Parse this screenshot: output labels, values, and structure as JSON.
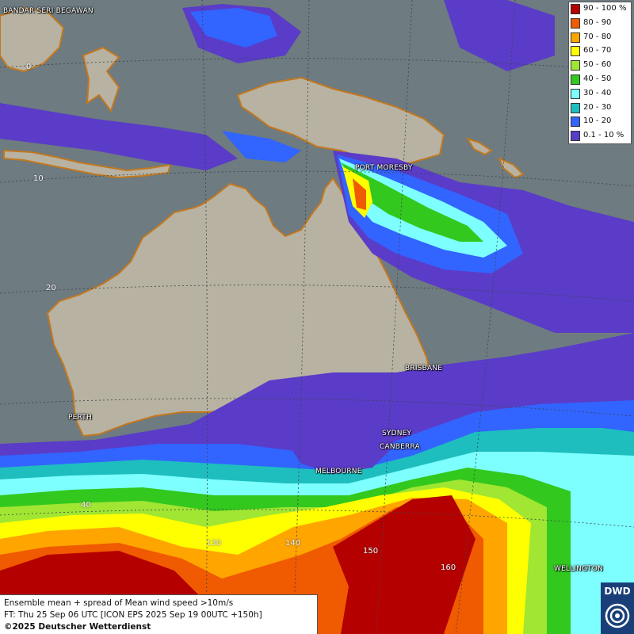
{
  "legend": {
    "items": [
      {
        "label": "90 - 100 %",
        "color": "#b50000"
      },
      {
        "label": "80 - 90",
        "color": "#f05a00"
      },
      {
        "label": "70 - 80",
        "color": "#ffa500"
      },
      {
        "label": "60 - 70",
        "color": "#ffff00"
      },
      {
        "label": "50 - 60",
        "color": "#a0e632"
      },
      {
        "label": "40 - 50",
        "color": "#32c81e"
      },
      {
        "label": "30 - 40",
        "color": "#7dffff"
      },
      {
        "label": "20 - 30",
        "color": "#1ebebe"
      },
      {
        "label": "10 - 20",
        "color": "#3264ff"
      },
      {
        "label": "0.1 - 10 %",
        "color": "#5a3cc8"
      }
    ]
  },
  "cities": {
    "bandar": "BANDAR SERI BEGAWAN",
    "port_moresby": "PORT MORESBY",
    "brisbane": "BRISBANE",
    "perth": "PERTH",
    "sydney": "SYDNEY",
    "canberra": "CANBERRA",
    "melbourne": "MELBOURNE",
    "wellington": "WELLINGTON"
  },
  "grid_labels": {
    "lat_0": "0",
    "lat_10": "10",
    "lat_20": "20",
    "lat_40": "40",
    "lon_130": "130",
    "lon_140": "140",
    "lon_150": "150",
    "lon_160": "160"
  },
  "info": {
    "line1": "Ensemble mean + spread of Mean wind speed >10m/s",
    "line2": "FT: Thu 25 Sep 06 UTC [ICON EPS 2025 Sep 19 00UTC +150h]",
    "copyright": "©2025 Deutscher Wetterdienst"
  },
  "logo": {
    "text": "DWD"
  },
  "colors": {
    "ocean": "#6e7b80",
    "land": "#b4ae9f",
    "coast": "#c27820"
  }
}
